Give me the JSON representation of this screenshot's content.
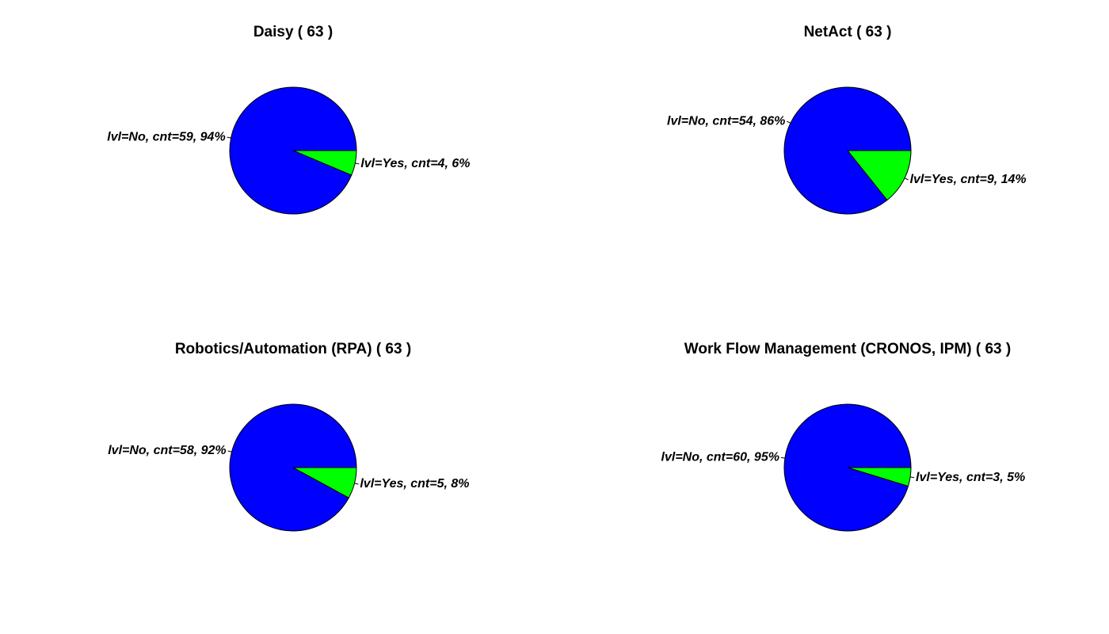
{
  "colors": {
    "No": "#0000ff",
    "Yes": "#00ff00",
    "outline": "#000000"
  },
  "chart_data": [
    {
      "type": "pie",
      "title": "Daisy ( 63 )",
      "slices": [
        {
          "name": "Yes",
          "value": 4,
          "label": "lvl=Yes, cnt=4, 6%"
        },
        {
          "name": "No",
          "value": 59,
          "label": "lvl=No, cnt=59, 94%"
        }
      ]
    },
    {
      "type": "pie",
      "title": "NetAct ( 63 )",
      "slices": [
        {
          "name": "Yes",
          "value": 9,
          "label": "lvl=Yes, cnt=9, 14%"
        },
        {
          "name": "No",
          "value": 54,
          "label": "lvl=No, cnt=54, 86%"
        }
      ]
    },
    {
      "type": "pie",
      "title": "Robotics/Automation (RPA) ( 63 )",
      "slices": [
        {
          "name": "Yes",
          "value": 5,
          "label": "lvl=Yes, cnt=5, 8%"
        },
        {
          "name": "No",
          "value": 58,
          "label": "lvl=No, cnt=58, 92%"
        }
      ]
    },
    {
      "type": "pie",
      "title": "Work Flow Management (CRONOS, IPM) ( 63 )",
      "slices": [
        {
          "name": "Yes",
          "value": 3,
          "label": "lvl=Yes, cnt=3, 5%"
        },
        {
          "name": "No",
          "value": 60,
          "label": "lvl=No, cnt=60, 95%"
        }
      ]
    }
  ]
}
